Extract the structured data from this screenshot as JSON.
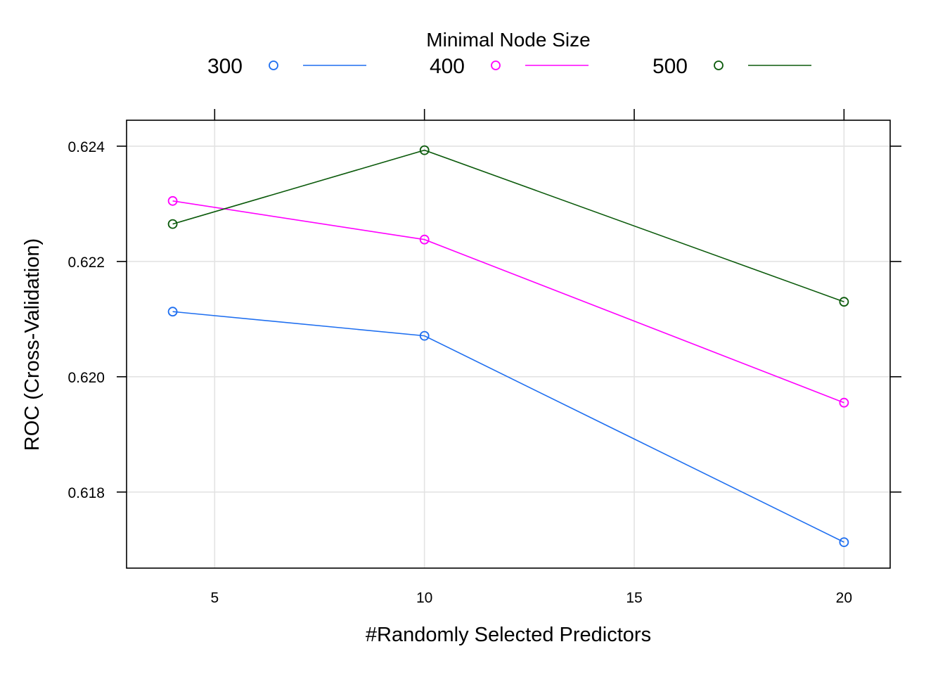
{
  "chart_data": {
    "type": "line",
    "xlabel": "#Randomly Selected Predictors",
    "ylabel": "ROC (Cross-Validation)",
    "legend": {
      "title": "Minimal Node Size",
      "placement": "top"
    },
    "xlim": [
      2.9,
      21.1
    ],
    "ylim": [
      0.61668,
      0.62445
    ],
    "x_ticks": [
      5,
      10,
      15,
      20
    ],
    "y_ticks": [
      0.618,
      0.62,
      0.622,
      0.624
    ],
    "x_tick_labels": [
      "5",
      "10",
      "15",
      "20"
    ],
    "y_tick_labels": [
      "0.618",
      "0.620",
      "0.622",
      "0.624"
    ],
    "grid": true,
    "x": [
      4,
      10,
      20
    ],
    "series": [
      {
        "name": "300",
        "color": "#1f6ff0",
        "values": [
          0.62113,
          0.62071,
          0.61713
        ]
      },
      {
        "name": "400",
        "color": "#ff00ff",
        "values": [
          0.62305,
          0.62238,
          0.61955
        ]
      },
      {
        "name": "500",
        "color": "#0b5a0b",
        "values": [
          0.62265,
          0.62393,
          0.6213
        ]
      }
    ]
  }
}
